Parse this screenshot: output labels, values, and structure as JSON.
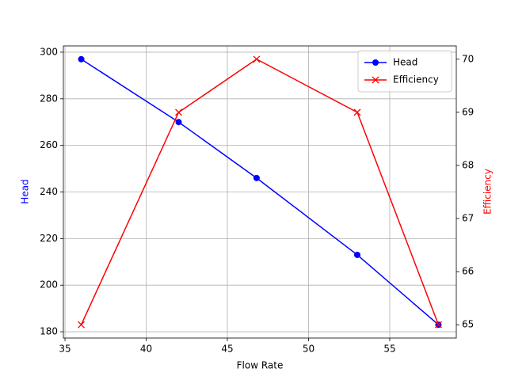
{
  "chart_data": {
    "type": "line",
    "x_label": "Flow Rate",
    "y_label": "Head",
    "y2_label": "Efficiency",
    "x": [
      36,
      42,
      46.8,
      53,
      58
    ],
    "series": [
      {
        "name": "Head",
        "color": "#0000ff",
        "marker": "o",
        "values": [
          297,
          270,
          246,
          213,
          183
        ]
      },
      {
        "name": "Efficiency",
        "color": "#ff0000",
        "marker": "x",
        "axis": "y2",
        "values": [
          65,
          69,
          70,
          69,
          65
        ]
      }
    ],
    "xlim": [
      34.9,
      59.1
    ],
    "xticks": [
      35,
      40,
      45,
      50,
      55
    ],
    "ylim": [
      177.3,
      302.7
    ],
    "yticks": [
      180,
      200,
      220,
      240,
      260,
      280,
      300
    ],
    "y2lim": [
      64.75,
      70.25
    ],
    "y2ticks": [
      65,
      66,
      67,
      68,
      69,
      70
    ],
    "grid": true,
    "legend": "upper right"
  }
}
